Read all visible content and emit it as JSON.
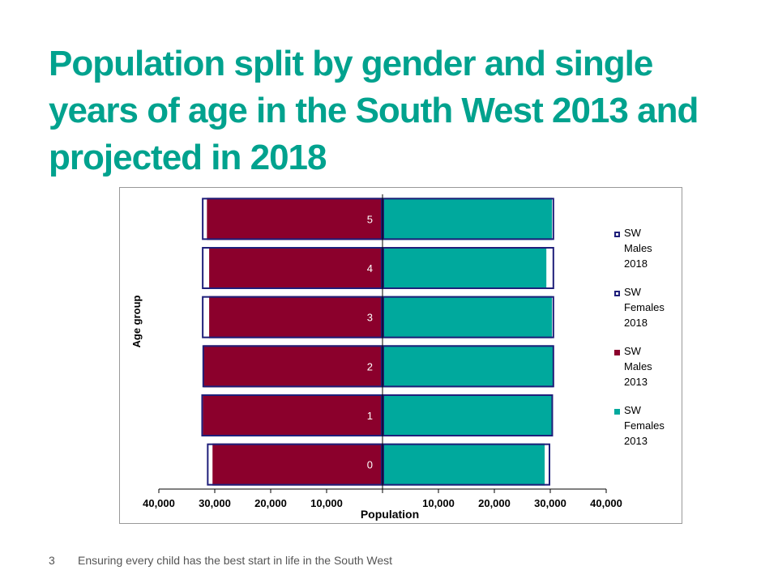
{
  "slide": {
    "title": "Population split by gender and single years of age in the South West 2013 and projected in 2018",
    "footer_number": "3",
    "footer_text": "Ensuring every child has the best start in life in the South West"
  },
  "chart_data": {
    "type": "bar",
    "orientation": "horizontal",
    "layout": "population-pyramid",
    "categories": [
      "0",
      "1",
      "2",
      "3",
      "4",
      "5"
    ],
    "xlabel": "Population",
    "ylabel": "Age group",
    "xlim": [
      -40000,
      40000
    ],
    "xticks": [
      -40000,
      -30000,
      -20000,
      -10000,
      0,
      10000,
      20000,
      30000,
      40000
    ],
    "xtick_labels": [
      "40,000",
      "30,000",
      "20,000",
      "10,000",
      "",
      "10,000",
      "20,000",
      "30,000",
      "40,000"
    ],
    "grid": false,
    "legend_position": "right",
    "series": [
      {
        "name": "SW Males 2018",
        "legend_lines": [
          "SW",
          "Males",
          "2018"
        ],
        "style": "outline",
        "color": "#1F1F7A",
        "side": "left",
        "values": [
          31400,
          32400,
          32200,
          32300,
          32300,
          32300
        ]
      },
      {
        "name": "SW Females 2018",
        "legend_lines": [
          "SW",
          "Females",
          "2018"
        ],
        "style": "outline",
        "color": "#1F1F7A",
        "side": "right",
        "values": [
          30000,
          30500,
          30700,
          30700,
          30700,
          30700
        ]
      },
      {
        "name": "SW Males 2013",
        "legend_lines": [
          "SW",
          "Males",
          "2013"
        ],
        "style": "fill",
        "color": "#8B002C",
        "side": "left",
        "values": [
          30400,
          32100,
          32000,
          31000,
          31000,
          31400
        ]
      },
      {
        "name": "SW Females 2013",
        "legend_lines": [
          "SW",
          "Females",
          "2013"
        ],
        "style": "fill",
        "color": "#00A99D",
        "side": "right",
        "values": [
          29000,
          30300,
          30500,
          30300,
          29300,
          30300
        ]
      }
    ]
  }
}
